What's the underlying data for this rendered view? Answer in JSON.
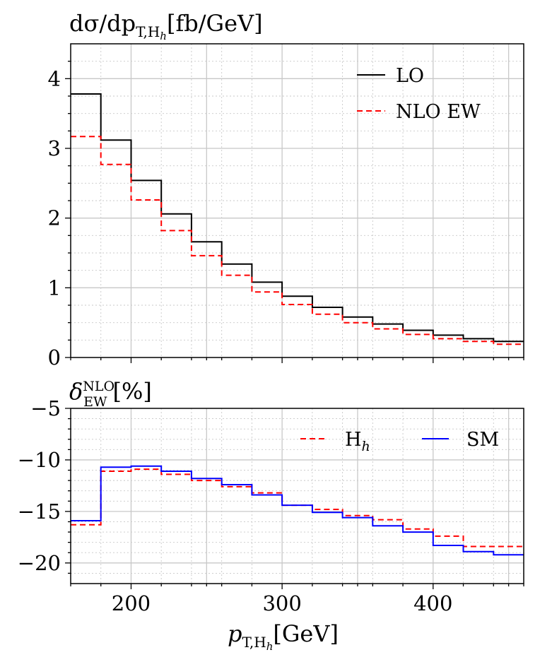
{
  "chart_data": [
    {
      "type": "line",
      "step": true,
      "title": "dσ/dp_{T,H_h}[fb/GeV]",
      "title_parts": {
        "main": "dσ/dp",
        "sub": "T,H",
        "subsub": "h",
        "unit": "[fb/GeV]"
      },
      "xlabel": "",
      "ylabel": "",
      "xlim": [
        160,
        460
      ],
      "ylim": [
        0,
        4.5
      ],
      "yticks": [
        0,
        1,
        2,
        3,
        4
      ],
      "ytick_labels": [
        "0",
        "1",
        "2",
        "3",
        "4"
      ],
      "bin_edges": [
        160,
        180,
        200,
        220,
        240,
        260,
        280,
        300,
        320,
        340,
        360,
        380,
        400,
        420,
        440,
        460
      ],
      "series": [
        {
          "name": "LO",
          "color": "#000000",
          "dashed": false,
          "values": [
            3.78,
            3.12,
            2.54,
            2.06,
            1.66,
            1.34,
            1.08,
            0.88,
            0.72,
            0.58,
            0.48,
            0.39,
            0.32,
            0.27,
            0.23
          ]
        },
        {
          "name": "NLO EW",
          "color": "#ff0000",
          "dashed": true,
          "values": [
            3.17,
            2.77,
            2.26,
            1.82,
            1.46,
            1.18,
            0.94,
            0.76,
            0.62,
            0.5,
            0.41,
            0.33,
            0.27,
            0.23,
            0.19
          ]
        }
      ],
      "legend_position": "top-right",
      "grid": true
    },
    {
      "type": "line",
      "step": true,
      "title": "δ_EW^NLO[%]",
      "title_parts": {
        "main": "δ",
        "sup": "NLO",
        "sub": "EW",
        "unit": "[%]"
      },
      "xlabel": "p_{T,H_h}[GeV]",
      "xlabel_parts": {
        "main": "p",
        "sub": "T,H",
        "subsub": "h",
        "unit": "[GeV]"
      },
      "ylabel": "",
      "xlim": [
        160,
        460
      ],
      "ylim": [
        -22,
        -5
      ],
      "xticks": [
        200,
        300,
        400
      ],
      "xtick_labels": [
        "200",
        "300",
        "400"
      ],
      "yticks": [
        -20,
        -15,
        -10,
        -5
      ],
      "ytick_labels": [
        "−20",
        "−15",
        "−10",
        "−5"
      ],
      "bin_edges": [
        160,
        180,
        200,
        220,
        240,
        260,
        280,
        300,
        320,
        340,
        360,
        380,
        400,
        420,
        440,
        460
      ],
      "series": [
        {
          "name": "H",
          "name_sub": "h",
          "color": "#ff0000",
          "dashed": true,
          "values": [
            -16.3,
            -11.1,
            -10.9,
            -11.4,
            -12.0,
            -12.6,
            -13.2,
            -14.4,
            -14.8,
            -15.4,
            -15.8,
            -16.7,
            -17.4,
            -18.4,
            -18.4
          ]
        },
        {
          "name": "SM",
          "color": "#0000ff",
          "dashed": false,
          "values": [
            -15.9,
            -10.7,
            -10.6,
            -11.1,
            -11.8,
            -12.4,
            -13.4,
            -14.4,
            -15.1,
            -15.6,
            -16.4,
            -17.0,
            -18.3,
            -18.9,
            -19.2
          ]
        }
      ],
      "legend_position": "top-right",
      "grid": true
    }
  ]
}
